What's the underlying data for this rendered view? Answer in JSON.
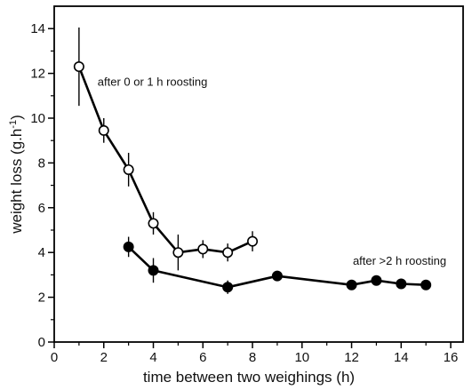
{
  "chart_data": {
    "type": "line",
    "xlabel": "time between two weighings (h)",
    "ylabel_main": "weight loss (g.h",
    "ylabel_sup": "-1",
    "ylabel_close": ")",
    "xlim": [
      0,
      16.5
    ],
    "ylim": [
      0,
      15
    ],
    "xticks": [
      0,
      2,
      4,
      6,
      8,
      10,
      12,
      14,
      16
    ],
    "yticks": [
      0,
      2,
      4,
      6,
      8,
      10,
      12,
      14
    ],
    "grid": false,
    "series": [
      {
        "marker": "open-circle",
        "color": "#000000",
        "x": [
          1,
          2,
          3,
          4,
          5,
          6,
          7,
          8
        ],
        "y": [
          12.3,
          9.45,
          7.7,
          5.3,
          4.0,
          4.15,
          4.0,
          4.5
        ],
        "err": [
          1.75,
          0.55,
          0.75,
          0.5,
          0.8,
          0.4,
          0.4,
          0.45
        ]
      },
      {
        "marker": "filled-circle",
        "color": "#000000",
        "x": [
          3,
          4,
          7,
          9,
          12,
          13,
          14,
          15
        ],
        "y": [
          4.25,
          3.2,
          2.45,
          2.95,
          2.55,
          2.75,
          2.6,
          2.55
        ],
        "err": [
          0.45,
          0.55,
          0.3,
          0.2,
          0.15,
          0.15,
          0.15,
          0.15
        ]
      }
    ],
    "annotations": [
      {
        "text": "after 0 or 1 h roosting",
        "x": 1.75,
        "y": 11.45
      },
      {
        "text": "after >2 h roosting",
        "x": 12.05,
        "y": 3.45
      }
    ]
  }
}
